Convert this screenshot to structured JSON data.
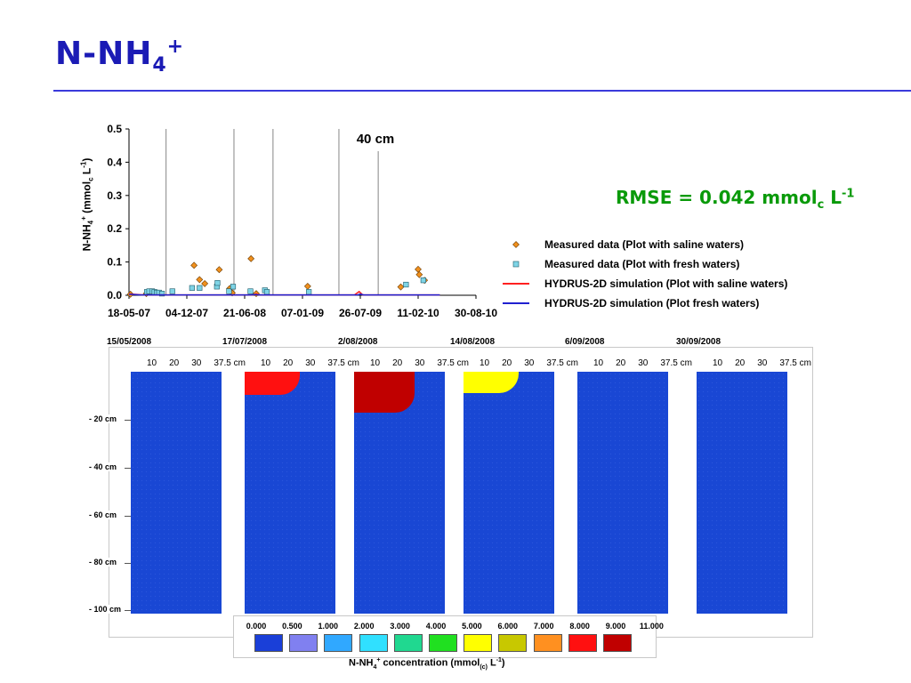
{
  "slide": {
    "title_main": "N-NH",
    "title_sub": "4",
    "title_sup": "+",
    "rmse_main": "RMSE = 0.042 mmol",
    "rmse_sub": "c",
    "rmse_unit": " L",
    "rmse_sup": "-1"
  },
  "chart_data": {
    "type": "scatter",
    "annotation": "40 cm",
    "ylabel_parts": [
      "N-NH",
      "4",
      "+",
      " (mmol",
      "c",
      " L",
      "-1",
      ")"
    ],
    "ylim": [
      0,
      0.5
    ],
    "yticks": [
      "0.0",
      "0.1",
      "0.2",
      "0.3",
      "0.4",
      "0.5"
    ],
    "xticks": [
      "18-05-07",
      "04-12-07",
      "21-06-08",
      "07-01-09",
      "26-07-09",
      "11-02-10",
      "30-08-10"
    ],
    "xtick_days": [
      0,
      200,
      400,
      600,
      800,
      1000,
      1200
    ],
    "xlim_days": [
      0,
      1200
    ],
    "vertical_lines_days": [
      128,
      363,
      498,
      726,
      862
    ],
    "legend_position": "right",
    "series": [
      {
        "name": "Measured data (Plot with saline waters)",
        "marker": "diamond",
        "color": "#f0901e",
        "points": [
          [
            5,
            0.003
          ],
          [
            60,
            0.005
          ],
          [
            225,
            0.09
          ],
          [
            244,
            0.047
          ],
          [
            262,
            0.035
          ],
          [
            312,
            0.077
          ],
          [
            348,
            0.02
          ],
          [
            357,
            0.007
          ],
          [
            422,
            0.11
          ],
          [
            440,
            0.005
          ],
          [
            475,
            0.012
          ],
          [
            618,
            0.027
          ],
          [
            940,
            0.025
          ],
          [
            1000,
            0.078
          ],
          [
            1004,
            0.062
          ],
          [
            1022,
            0.045
          ]
        ]
      },
      {
        "name": "Measured data (Plot with fresh waters)",
        "marker": "square",
        "color": "#7fd4e6",
        "points": [
          [
            62,
            0.01
          ],
          [
            70,
            0.012
          ],
          [
            80,
            0.012
          ],
          [
            88,
            0.01
          ],
          [
            96,
            0.008
          ],
          [
            104,
            0.008
          ],
          [
            114,
            0.005
          ],
          [
            150,
            0.012
          ],
          [
            218,
            0.022
          ],
          [
            244,
            0.022
          ],
          [
            304,
            0.026
          ],
          [
            306,
            0.037
          ],
          [
            346,
            0.012
          ],
          [
            360,
            0.026
          ],
          [
            420,
            0.012
          ],
          [
            470,
            0.015
          ],
          [
            477,
            0.01
          ],
          [
            622,
            0.01
          ],
          [
            958,
            0.032
          ],
          [
            1018,
            0.045
          ]
        ]
      },
      {
        "name": "HYDRUS-2D simulation (Plot with saline waters)",
        "marker": "line",
        "color": "#ff2020",
        "points": [
          [
            0,
            0.004
          ],
          [
            50,
            0.001
          ],
          [
            200,
            0.001
          ],
          [
            430,
            0.001
          ],
          [
            440,
            0.004
          ],
          [
            450,
            0.001
          ],
          [
            780,
            0.001
          ],
          [
            796,
            0.011
          ],
          [
            808,
            0.001
          ],
          [
            1075,
            0.001
          ]
        ]
      },
      {
        "name": "HYDRUS-2D simulation (Plot fresh waters)",
        "marker": "line",
        "color": "#2020d0",
        "points": [
          [
            0,
            0.003
          ],
          [
            40,
            0.001
          ],
          [
            420,
            0.001
          ],
          [
            435,
            0.002
          ],
          [
            450,
            0.001
          ],
          [
            790,
            0.001
          ],
          [
            800,
            0.003
          ],
          [
            812,
            0.001
          ],
          [
            1075,
            0.001
          ]
        ]
      }
    ]
  },
  "profiles": {
    "dates": [
      "15/05/2008",
      "17/07/2008",
      "2/08/2008",
      "14/08/2008",
      "6/09/2008",
      "30/09/2008"
    ],
    "x_tick_labels": [
      "10",
      "20",
      "30",
      "37.5 cm"
    ],
    "depth_labels": [
      "- 20 cm",
      "- 40 cm",
      "- 60 cm",
      "- 80 cm",
      "- 100 cm"
    ],
    "plume_levels": [
      0,
      3,
      5,
      2,
      0,
      0
    ]
  },
  "colorbar": {
    "ticks": [
      "0.000",
      "0.500",
      "1.000",
      "2.000",
      "3.000",
      "4.000",
      "5.000",
      "6.000",
      "7.000",
      "8.000",
      "9.000",
      "11.000"
    ],
    "colors": [
      "#1a3fd8",
      "#8080f0",
      "#30a8ff",
      "#30e0ff",
      "#20d890",
      "#20e020",
      "#ffff00",
      "#c8c800",
      "#ff9020",
      "#ff1010",
      "#c00000"
    ],
    "title_parts": [
      "N-NH",
      "4",
      "+",
      " concentration (mmol",
      "(c)",
      " L",
      "-1",
      ")"
    ]
  }
}
